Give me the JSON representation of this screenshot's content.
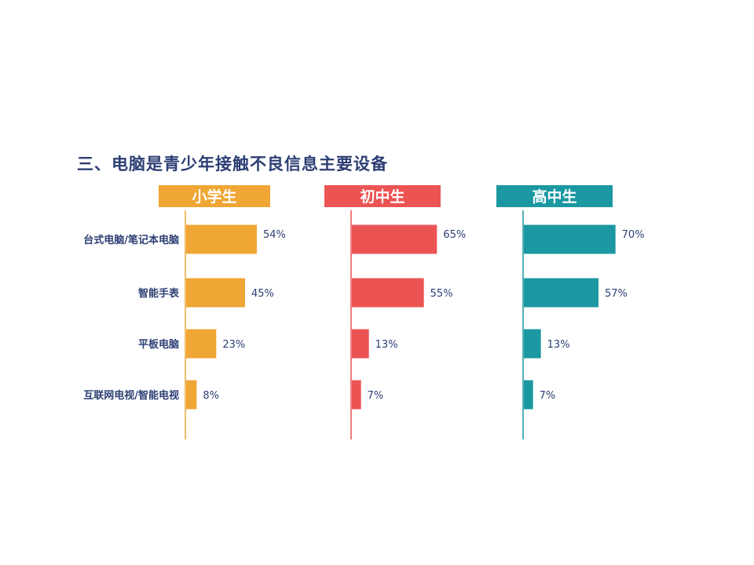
{
  "title": "三、电脑是青少年接触不良信息主要设备",
  "colors": {
    "text": "#2c3e73",
    "panel_colors": [
      "#efa635",
      "#ec5454",
      "#1b98a1"
    ]
  },
  "chart_data": {
    "type": "bar",
    "orientation": "horizontal",
    "title": "三、电脑是青少年接触不良信息主要设备",
    "categories": [
      "台式电脑/笔记本电脑",
      "智能手表",
      "平板电脑",
      "互联网电视/智能电视"
    ],
    "series": [
      {
        "name": "小学生",
        "values": [
          54,
          45,
          23,
          8
        ],
        "labels": [
          "54%",
          "45%",
          "23%",
          "8%"
        ],
        "color": "#efa635"
      },
      {
        "name": "初中生",
        "values": [
          65,
          55,
          13,
          7
        ],
        "labels": [
          "65%",
          "55%",
          "13%",
          "7%"
        ],
        "color": "#ec5454"
      },
      {
        "name": "高中生",
        "values": [
          70,
          57,
          13,
          7
        ],
        "labels": [
          "70%",
          "57%",
          "13%",
          "7%"
        ],
        "color": "#1b98a1"
      }
    ],
    "unit": "%",
    "layout": "small-multiples",
    "grid": false,
    "legend": "none"
  }
}
